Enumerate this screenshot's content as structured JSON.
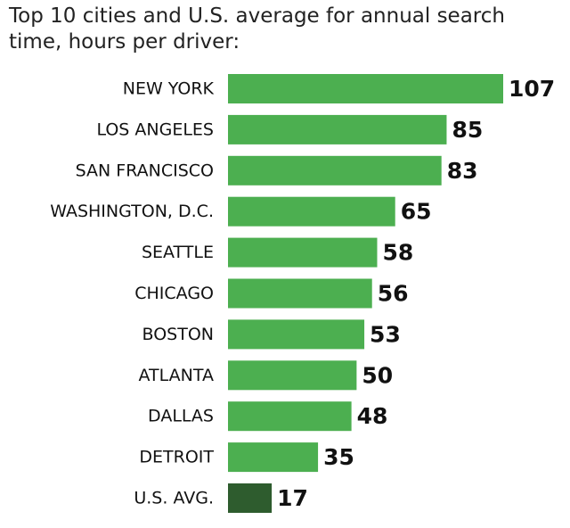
{
  "chart_data": {
    "type": "bar",
    "orientation": "horizontal",
    "title": "Top 10 cities and U.S. average for annual search time, hours per driver:",
    "categories": [
      "NEW YORK",
      "LOS ANGELES",
      "SAN FRANCISCO",
      "WASHINGTON, D.C.",
      "SEATTLE",
      "CHICAGO",
      "BOSTON",
      "ATLANTA",
      "DALLAS",
      "DETROIT",
      "U.S. AVG."
    ],
    "values": [
      107,
      85,
      83,
      65,
      58,
      56,
      53,
      50,
      48,
      35,
      17
    ],
    "value_labels": [
      "107",
      "85",
      "83",
      "65",
      "58",
      "56",
      "53",
      "50",
      "48",
      "35",
      "17"
    ],
    "xlim": [
      0,
      107
    ],
    "grid": false,
    "legend": "none",
    "colors": {
      "bar": "#4caf50",
      "highlight": "#2e5c2e",
      "highlight_category": "U.S. AVG."
    }
  }
}
